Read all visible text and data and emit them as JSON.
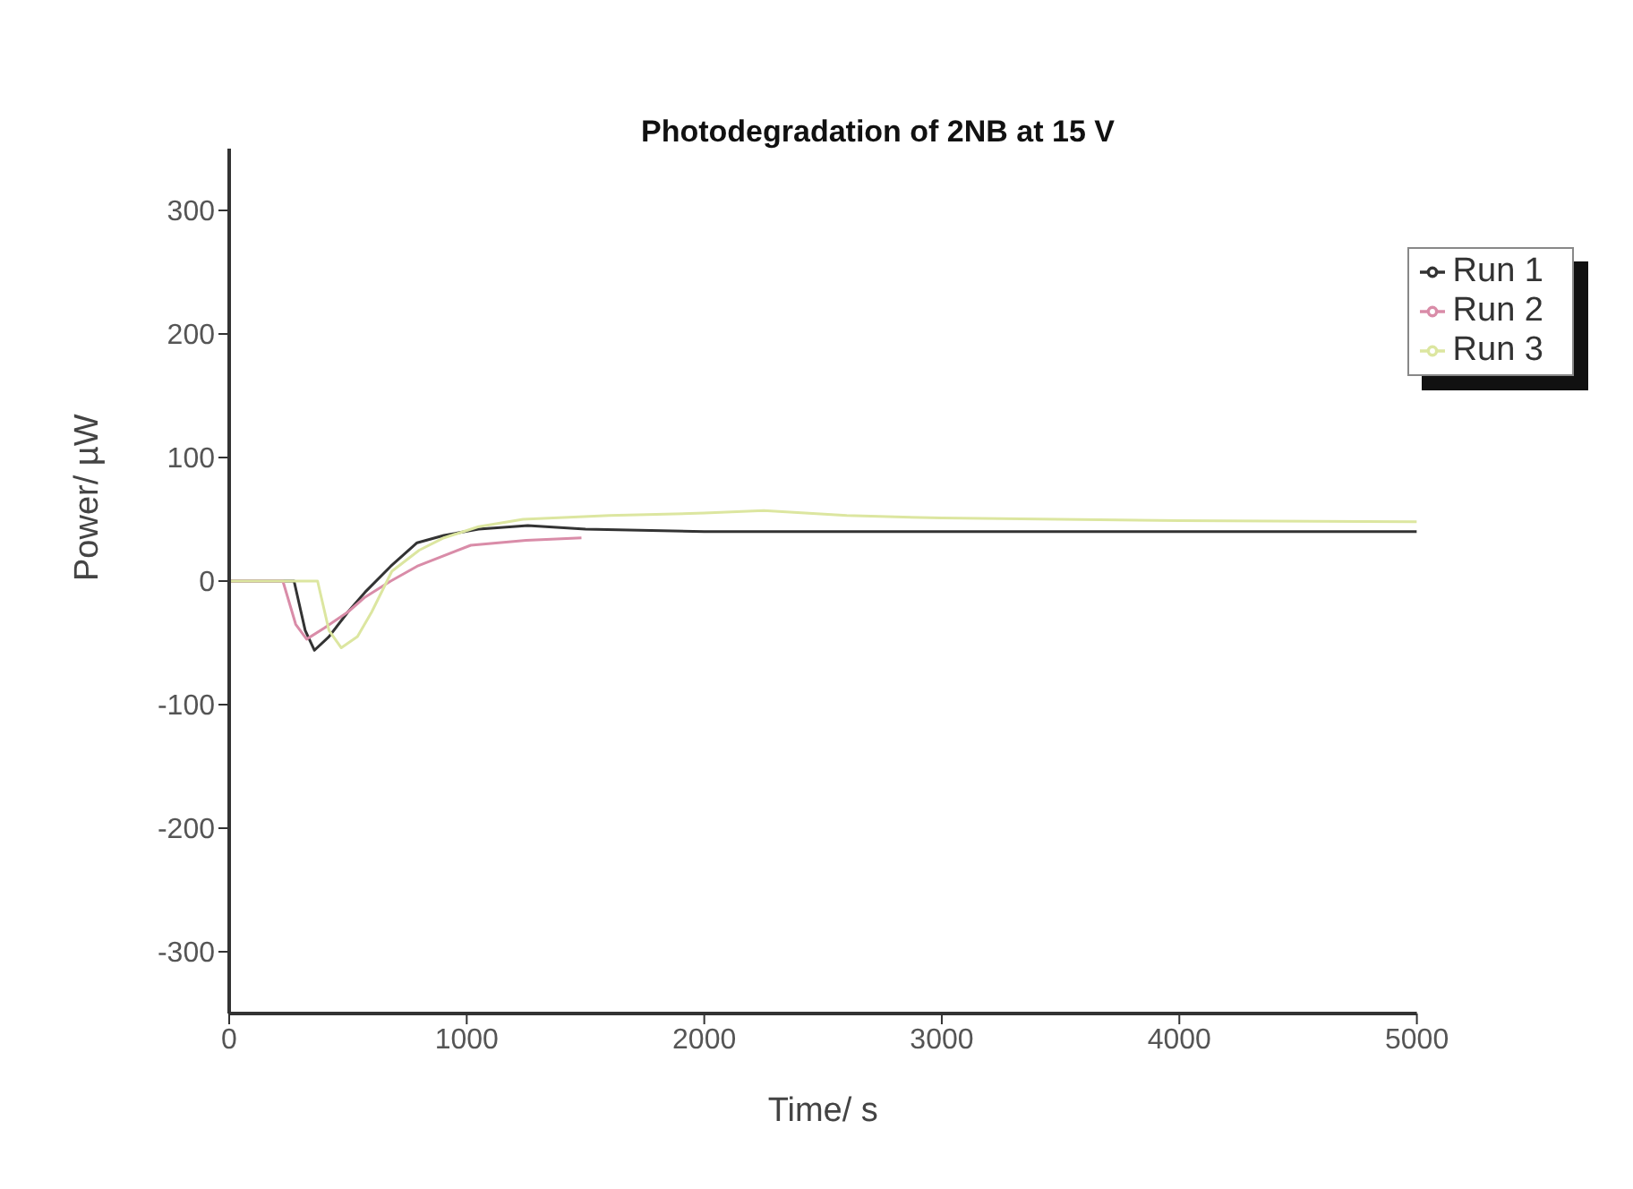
{
  "chart_data": {
    "type": "line",
    "title": "Photodegradation of 2NB at 15 V",
    "xlabel": "Time/ s",
    "ylabel": "Power/ µW",
    "xlim": [
      0,
      5000
    ],
    "ylim": [
      -350,
      350
    ],
    "xticks": [
      0,
      1000,
      2000,
      3000,
      4000,
      5000
    ],
    "yticks": [
      -300,
      -200,
      -100,
      0,
      100,
      200,
      300
    ],
    "legend": "top right",
    "grid": false,
    "marker": "none",
    "line_style": "solid",
    "series": [
      {
        "name": "Run 1",
        "color": "#333333",
        "x": [
          0,
          150,
          273,
          320,
          359,
          420,
          500,
          572,
          680,
          791,
          904,
          1050,
          1257,
          1500,
          2000,
          3000,
          4000,
          5000
        ],
        "values": [
          0,
          0,
          0,
          -40,
          -56,
          -45,
          -25,
          -9,
          12,
          31,
          37,
          42,
          45,
          42,
          40,
          40,
          40,
          40
        ]
      },
      {
        "name": "Run 2",
        "color": "#d98ca8",
        "x": [
          0,
          150,
          226,
          280,
          326,
          400,
          500,
          572,
          680,
          791,
          1017,
          1250,
          1483
        ],
        "values": [
          0,
          0,
          0,
          -35,
          -47,
          -38,
          -25,
          -13,
          0,
          12,
          29,
          33,
          35
        ]
      },
      {
        "name": "Run 3",
        "color": "#dce6a0",
        "x": [
          0,
          200,
          372,
          420,
          472,
          540,
          600,
          685,
          800,
          904,
          1050,
          1237,
          1600,
          2000,
          2250,
          2600,
          3000,
          4000,
          5000
        ],
        "values": [
          0,
          0,
          0,
          -40,
          -54,
          -45,
          -25,
          8,
          25,
          35,
          44,
          50,
          53,
          55,
          57,
          53,
          51,
          49,
          48
        ]
      }
    ]
  }
}
